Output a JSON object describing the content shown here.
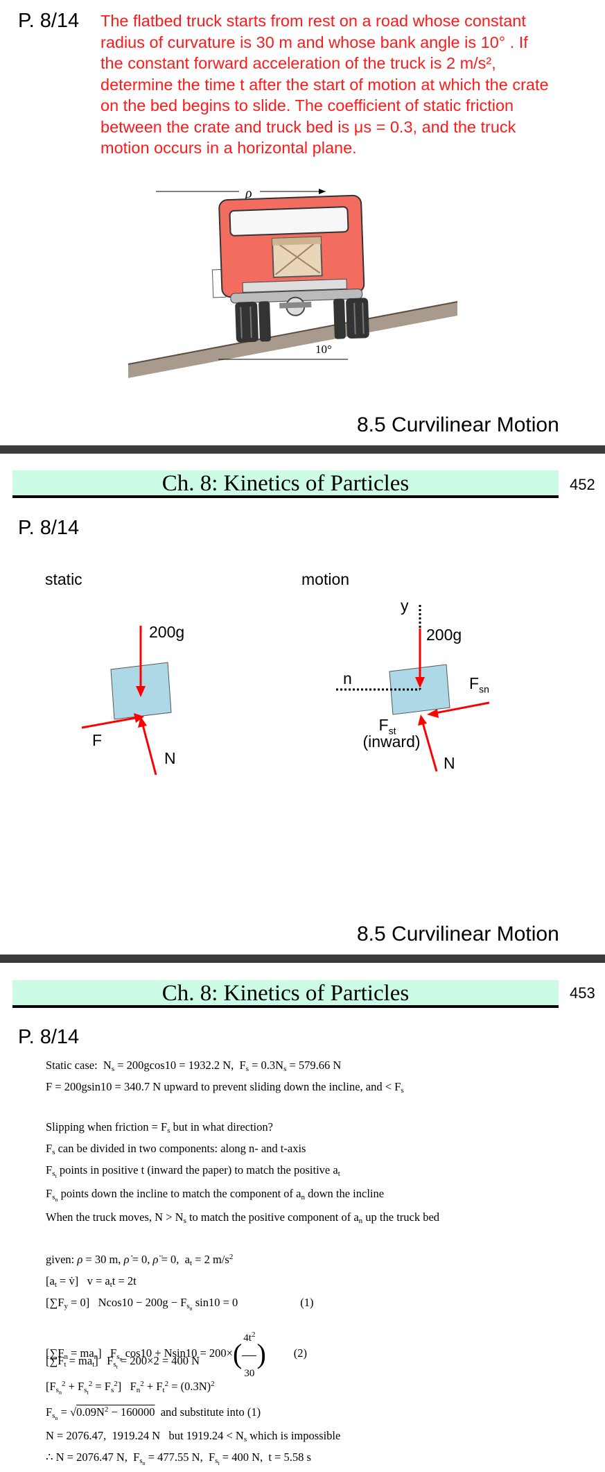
{
  "slide1": {
    "problem_number": "P. 8/14",
    "problem_lines": [
      "The flatbed truck starts from rest on a road whose constant",
      "radius of curvature is 30 m and whose bank angle is 10°  .  If",
      "the constant forward acceleration of the truck is 2 m/s²,",
      "determine the time t after the start of motion at which the crate",
      "on the bed begins to slide.  The coefficient of static friction",
      "between the crate and truck bed is μs = 0.3, and the truck",
      "motion occurs in a horizontal plane."
    ],
    "figure": {
      "rho_label": "ρ",
      "angle_label": "10°"
    },
    "section_title": "8.5 Curvilinear Motion"
  },
  "slide2": {
    "chapter_title": "Ch. 8: Kinetics of Particles",
    "page_number": "452",
    "problem_number": "P. 8/14",
    "static_label": "static",
    "motion_label": "motion",
    "static_fbd": {
      "weight": "200g",
      "friction": "F",
      "normal": "N"
    },
    "motion_fbd": {
      "y_axis": "y",
      "n_axis": "n",
      "weight": "200g",
      "fsn_main": "F",
      "fsn_sub": "sn",
      "fst_main": "F",
      "fst_sub": "st",
      "fst_note": "(inward)",
      "normal": "N"
    },
    "section_title": "8.5 Curvilinear Motion"
  },
  "slide3": {
    "chapter_title": "Ch. 8: Kinetics of Particles",
    "page_number": "453",
    "problem_number": "P. 8/14"
  }
}
